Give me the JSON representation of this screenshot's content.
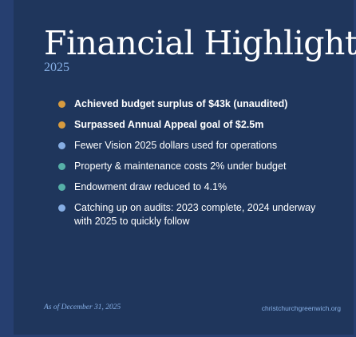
{
  "slide": {
    "title": "Financial Highlights",
    "year": "2025",
    "bullets": [
      {
        "text": "Achieved budget surplus of $43k (unaudited)",
        "bold": true,
        "color": "#d79b3f"
      },
      {
        "text": "Surpassed Annual Appeal goal of $2.5m",
        "bold": true,
        "color": "#d79b3f"
      },
      {
        "text": "Fewer Vision 2025 dollars used for operations",
        "bold": false,
        "color": "#86aee4"
      },
      {
        "text": "Property & maintenance costs 2% under budget",
        "bold": false,
        "color": "#56b0a8"
      },
      {
        "text": "Endowment draw reduced to 4.1%",
        "bold": false,
        "color": "#56b0a8"
      },
      {
        "text": "Catching up on audits: 2023 complete, 2024 underway with 2025 to quickly follow",
        "bold": false,
        "color": "#86aee4"
      }
    ],
    "footer_date": "As of December 31, 2025",
    "footer_url": "christchurchgreenwich.org"
  },
  "colors": {
    "background": "#1f365c",
    "accent_gold": "#d79b3f",
    "accent_blue": "#86aee4",
    "accent_teal": "#56b0a8"
  }
}
